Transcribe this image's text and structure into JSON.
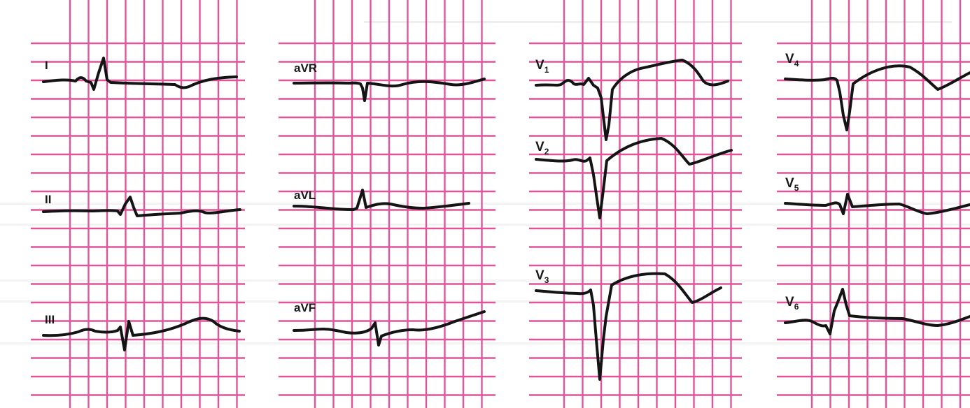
{
  "colors": {
    "grid": "#e0559a",
    "trace": "#141414",
    "paper": "#ffffff",
    "bleed_text": "#8c8c8c"
  },
  "leads": [
    {
      "id": "I",
      "label": "I",
      "sub": ""
    },
    {
      "id": "II",
      "label": "II",
      "sub": ""
    },
    {
      "id": "III",
      "label": "III",
      "sub": ""
    },
    {
      "id": "aVR",
      "label": "aVR",
      "sub": ""
    },
    {
      "id": "aVL",
      "label": "aVL",
      "sub": ""
    },
    {
      "id": "aVF",
      "label": "aVF",
      "sub": ""
    },
    {
      "id": "V1",
      "label": "V",
      "sub": "1"
    },
    {
      "id": "V2",
      "label": "V",
      "sub": "2"
    },
    {
      "id": "V3",
      "label": "V",
      "sub": "3"
    },
    {
      "id": "V4",
      "label": "V",
      "sub": "4"
    },
    {
      "id": "V5",
      "label": "V",
      "sub": "5"
    },
    {
      "id": "V6",
      "label": "V",
      "sub": "6"
    }
  ]
}
